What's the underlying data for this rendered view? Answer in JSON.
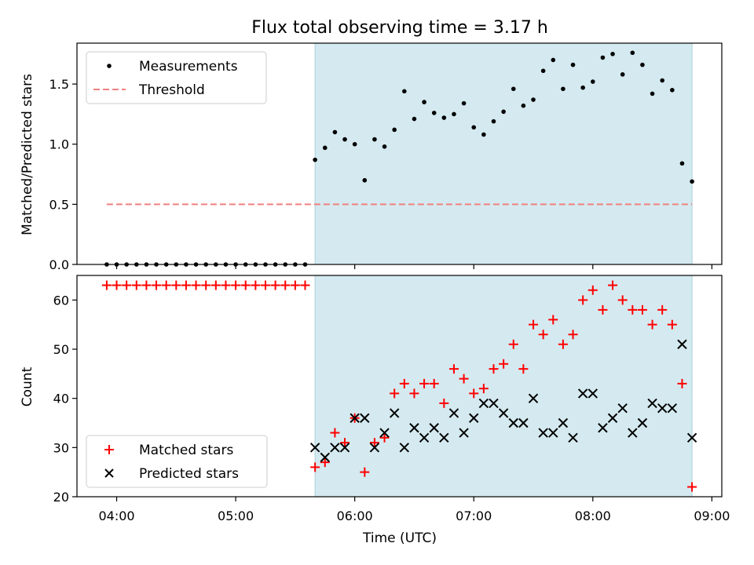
{
  "chart_data": [
    {
      "type": "scatter",
      "title": "Flux total observing time = 3.17 h",
      "ylabel": "Matched/Predicted stars",
      "xlim": [
        "03:40",
        "09:05"
      ],
      "ylim": [
        0,
        1.84
      ],
      "x_ticks": [
        "04:00",
        "05:00",
        "06:00",
        "07:00",
        "08:00",
        "09:00"
      ],
      "y_ticks": [
        "0.0",
        "0.5",
        "1.0",
        "1.5"
      ],
      "shaded_interval": [
        "05:40",
        "08:50"
      ],
      "shade_color": "#d4eaf0",
      "legend_position": "upper-left",
      "series": [
        {
          "name": "Measurements",
          "marker": "dot",
          "color": "#000000",
          "x": [
            "03:55",
            "04:00",
            "04:05",
            "04:10",
            "04:15",
            "04:20",
            "04:25",
            "04:30",
            "04:35",
            "04:40",
            "04:45",
            "04:50",
            "04:55",
            "05:00",
            "05:05",
            "05:10",
            "05:15",
            "05:20",
            "05:25",
            "05:30",
            "05:35",
            "05:40",
            "05:45",
            "05:50",
            "05:55",
            "06:00",
            "06:05",
            "06:10",
            "06:15",
            "06:20",
            "06:25",
            "06:30",
            "06:35",
            "06:40",
            "06:45",
            "06:50",
            "06:55",
            "07:00",
            "07:05",
            "07:10",
            "07:15",
            "07:20",
            "07:25",
            "07:30",
            "07:35",
            "07:40",
            "07:45",
            "07:50",
            "07:55",
            "08:00",
            "08:05",
            "08:10",
            "08:15",
            "08:20",
            "08:25",
            "08:30",
            "08:35",
            "08:40",
            "08:45",
            "08:50"
          ],
          "values": [
            0,
            0,
            0,
            0,
            0,
            0,
            0,
            0,
            0,
            0,
            0,
            0,
            0,
            0,
            0,
            0,
            0,
            0,
            0,
            0,
            0,
            0.87,
            0.97,
            1.1,
            1.04,
            1.0,
            0.7,
            1.04,
            0.98,
            1.12,
            1.44,
            1.21,
            1.35,
            1.26,
            1.22,
            1.25,
            1.34,
            1.14,
            1.08,
            1.19,
            1.27,
            1.46,
            1.32,
            1.37,
            1.61,
            1.7,
            1.46,
            1.66,
            1.47,
            1.52,
            1.72,
            1.75,
            1.58,
            1.76,
            1.66,
            1.42,
            1.53,
            1.45,
            0.84,
            0.69
          ]
        },
        {
          "name": "Threshold",
          "line_style": "dashed",
          "color": "#f08080",
          "x": [
            "03:55",
            "08:50"
          ],
          "values": [
            0.5,
            0.5
          ]
        }
      ]
    },
    {
      "type": "scatter",
      "xlabel": "Time (UTC)",
      "ylabel": "Count",
      "xlim": [
        "03:40",
        "09:05"
      ],
      "ylim": [
        20,
        65
      ],
      "x_ticks": [
        "04:00",
        "05:00",
        "06:00",
        "07:00",
        "08:00",
        "09:00"
      ],
      "y_ticks": [
        "20",
        "30",
        "40",
        "50",
        "60"
      ],
      "shaded_interval": [
        "05:40",
        "08:50"
      ],
      "shade_color": "#d4eaf0",
      "legend_position": "lower-left",
      "series": [
        {
          "name": "Matched stars",
          "marker": "plus",
          "color": "#ff0000",
          "x": [
            "03:55",
            "04:00",
            "04:05",
            "04:10",
            "04:15",
            "04:20",
            "04:25",
            "04:30",
            "04:35",
            "04:40",
            "04:45",
            "04:50",
            "04:55",
            "05:00",
            "05:05",
            "05:10",
            "05:15",
            "05:20",
            "05:25",
            "05:30",
            "05:35",
            "05:40",
            "05:45",
            "05:50",
            "05:55",
            "06:00",
            "06:05",
            "06:10",
            "06:15",
            "06:20",
            "06:25",
            "06:30",
            "06:35",
            "06:40",
            "06:45",
            "06:50",
            "06:55",
            "07:00",
            "07:05",
            "07:10",
            "07:15",
            "07:20",
            "07:25",
            "07:30",
            "07:35",
            "07:40",
            "07:45",
            "07:50",
            "07:55",
            "08:00",
            "08:05",
            "08:10",
            "08:15",
            "08:20",
            "08:25",
            "08:30",
            "08:35",
            "08:40",
            "08:45",
            "08:50"
          ],
          "values": [
            63,
            63,
            63,
            63,
            63,
            63,
            63,
            63,
            63,
            63,
            63,
            63,
            63,
            63,
            63,
            63,
            63,
            63,
            63,
            63,
            63,
            26,
            27,
            33,
            31,
            36,
            25,
            31,
            32,
            41,
            43,
            41,
            43,
            43,
            39,
            46,
            44,
            41,
            42,
            46,
            47,
            51,
            46,
            55,
            53,
            56,
            51,
            53,
            60,
            62,
            58,
            63,
            60,
            58,
            58,
            55,
            58,
            55,
            43,
            22
          ]
        },
        {
          "name": "Predicted stars",
          "marker": "x",
          "color": "#000000",
          "x": [
            "05:40",
            "05:45",
            "05:50",
            "05:55",
            "06:00",
            "06:05",
            "06:10",
            "06:15",
            "06:20",
            "06:25",
            "06:30",
            "06:35",
            "06:40",
            "06:45",
            "06:50",
            "06:55",
            "07:00",
            "07:05",
            "07:10",
            "07:15",
            "07:20",
            "07:25",
            "07:30",
            "07:35",
            "07:40",
            "07:45",
            "07:50",
            "07:55",
            "08:00",
            "08:05",
            "08:10",
            "08:15",
            "08:20",
            "08:25",
            "08:30",
            "08:35",
            "08:40",
            "08:45",
            "08:50"
          ],
          "values": [
            30,
            28,
            30,
            30,
            36,
            36,
            30,
            33,
            37,
            30,
            34,
            32,
            34,
            32,
            37,
            33,
            36,
            39,
            39,
            37,
            35,
            35,
            40,
            33,
            33,
            35,
            32,
            41,
            41,
            34,
            36,
            38,
            33,
            35,
            39,
            38,
            38,
            51,
            32
          ]
        }
      ]
    }
  ]
}
